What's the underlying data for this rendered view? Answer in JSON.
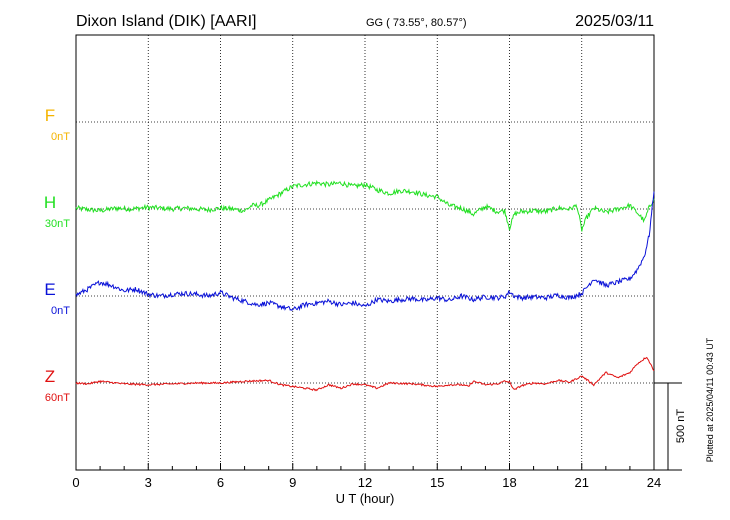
{
  "header": {
    "station": "Dixon Island (DIK)  [AARI]",
    "coords": "GG ( 73.55°,  80.57°)",
    "date": "2025/03/11"
  },
  "chart_data": {
    "type": "line",
    "xlabel": "U T (hour)",
    "xlim": [
      0,
      24
    ],
    "x_ticks": [
      "0",
      "3",
      "6",
      "9",
      "12",
      "15",
      "18",
      "21",
      "24"
    ],
    "scale_label": "500 nT",
    "side_note": "Plotted at 2025/04/11 00:43 UT",
    "colors": {
      "F": "#f5b400",
      "H": "#22e022",
      "E": "#0a12d8",
      "Z": "#e01010"
    },
    "series": [
      {
        "name": "F",
        "baseline": "0nT",
        "x": [],
        "y": []
      },
      {
        "name": "H",
        "baseline": "30nT",
        "x": [
          0,
          0.3,
          1,
          1.7,
          2.3,
          3,
          3.5,
          4,
          4.5,
          5,
          5.5,
          6,
          6.5,
          7,
          7.3,
          7.6,
          8,
          8.5,
          9,
          9.5,
          10,
          10.5,
          11,
          11.5,
          12,
          12.5,
          13,
          13.5,
          14,
          14.5,
          15,
          15.5,
          16,
          16.5,
          17,
          17.5,
          17.8,
          18,
          18.2,
          18.5,
          19,
          19.5,
          20,
          20.5,
          20.8,
          21,
          21.2,
          21.5,
          22,
          22.5,
          23,
          23.3,
          23.6,
          23.8,
          24
        ],
        "y": [
          5,
          0,
          -10,
          5,
          0,
          10,
          5,
          0,
          5,
          0,
          -5,
          5,
          0,
          -10,
          20,
          20,
          50,
          90,
          130,
          140,
          150,
          140,
          150,
          130,
          140,
          110,
          90,
          105,
          100,
          80,
          70,
          20,
          5,
          -30,
          15,
          -15,
          -10,
          -110,
          -30,
          -15,
          -10,
          -15,
          5,
          0,
          20,
          -120,
          -50,
          5,
          -20,
          0,
          20,
          -20,
          -70,
          10,
          60
        ]
      },
      {
        "name": "E",
        "baseline": "0nT",
        "x": [
          0,
          0.5,
          1,
          1.5,
          2,
          2.5,
          3,
          3.5,
          4,
          4.5,
          5,
          5.5,
          6,
          6.5,
          7,
          7.5,
          8,
          8.5,
          9,
          9.5,
          10,
          10.5,
          11,
          11.5,
          12,
          12.5,
          13,
          13.5,
          14,
          14.5,
          15,
          15.5,
          16,
          16.5,
          17,
          17.5,
          17.8,
          18,
          18.2,
          18.5,
          19,
          19.5,
          20,
          20.5,
          21,
          21.5,
          22,
          22.5,
          23,
          23.3,
          23.6,
          23.8,
          24
        ],
        "y": [
          5,
          40,
          80,
          60,
          30,
          40,
          10,
          0,
          10,
          15,
          10,
          0,
          20,
          -10,
          -30,
          -50,
          -40,
          -60,
          -80,
          -50,
          -40,
          -30,
          -50,
          -40,
          -60,
          -20,
          -30,
          -20,
          -15,
          -25,
          -10,
          -25,
          0,
          -20,
          -5,
          -10,
          -5,
          25,
          0,
          -10,
          -5,
          -10,
          5,
          -10,
          15,
          100,
          60,
          80,
          100,
          150,
          230,
          350,
          600
        ]
      },
      {
        "name": "Z",
        "baseline": "60nT",
        "x": [
          0,
          0.5,
          1,
          2,
          3,
          4,
          5,
          6,
          6.5,
          7,
          8,
          8.5,
          9,
          9.5,
          10,
          10.5,
          11,
          11.5,
          12,
          12.5,
          13,
          14,
          15,
          15.5,
          16,
          16.3,
          16.5,
          17,
          17.5,
          17.8,
          18,
          18.2,
          18.5,
          19,
          19.5,
          20,
          20.5,
          21,
          21.2,
          21.5,
          22,
          22.5,
          23,
          23.3,
          23.7,
          24
        ],
        "y": [
          0,
          -5,
          10,
          -5,
          -10,
          -5,
          0,
          0,
          5,
          10,
          15,
          -10,
          -20,
          -30,
          -40,
          -10,
          -30,
          -5,
          -10,
          -30,
          0,
          -5,
          -20,
          -10,
          -10,
          -20,
          10,
          -10,
          -5,
          10,
          5,
          -40,
          -15,
          0,
          -5,
          15,
          5,
          40,
          20,
          -10,
          60,
          30,
          60,
          110,
          150,
          70
        ]
      }
    ]
  }
}
